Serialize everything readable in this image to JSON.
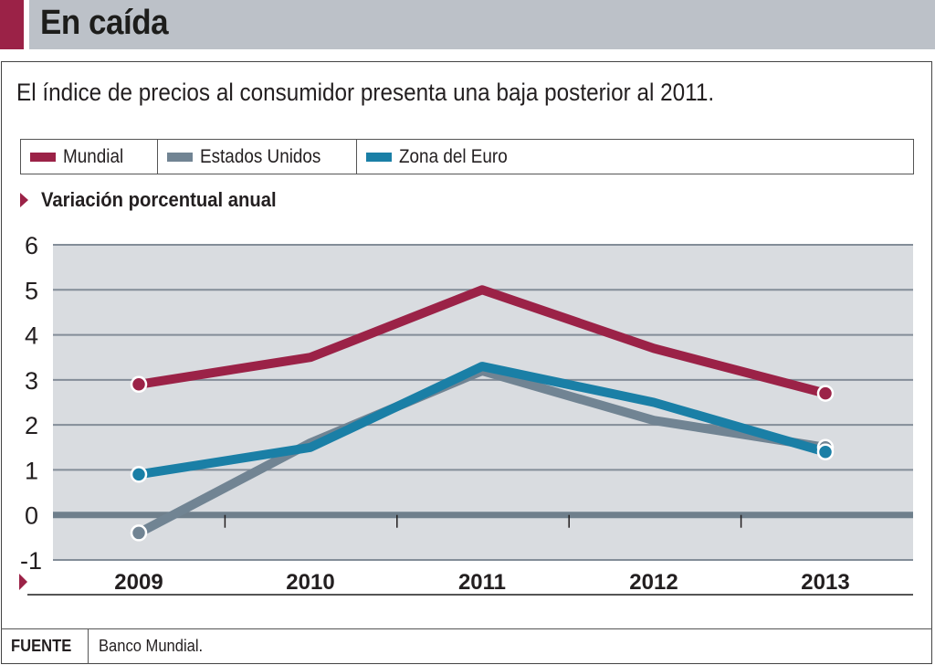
{
  "header": {
    "title": "En caída",
    "subtitle": "El índice de precios al consumidor presenta una baja posterior al 2011."
  },
  "legend": [
    {
      "label": "Mundial",
      "color": "#9b2247"
    },
    {
      "label": "Estados Unidos",
      "color": "#718493"
    },
    {
      "label": "Zona del Euro",
      "color": "#1a7fa6"
    }
  ],
  "unit_label": "Variación porcentual anual",
  "footer": {
    "source_label": "FUENTE",
    "source_text": "Banco Mundial."
  },
  "colors": {
    "accent": "#9b2247",
    "plot_bg": "#d9dce0",
    "grid": "#838d98",
    "zero_line": "#6f7f8c"
  },
  "chart_data": {
    "type": "line",
    "title": "En caída",
    "subtitle": "El índice de precios al consumidor presenta una baja posterior al 2011.",
    "xlabel": "",
    "ylabel": "Variación porcentual anual",
    "categories": [
      "2009",
      "2010",
      "2011",
      "2012",
      "2013"
    ],
    "ylim": [
      -1,
      6
    ],
    "yticks": [
      6,
      5,
      4,
      3,
      2,
      1,
      0,
      -1
    ],
    "grid": true,
    "legend_position": "top",
    "series": [
      {
        "name": "Mundial",
        "color": "#9b2247",
        "values": [
          2.9,
          3.5,
          5.0,
          3.7,
          2.7
        ]
      },
      {
        "name": "Estados Unidos",
        "color": "#718493",
        "values": [
          -0.4,
          1.6,
          3.2,
          2.1,
          1.5
        ]
      },
      {
        "name": "Zona del Euro",
        "color": "#1a7fa6",
        "values": [
          0.9,
          1.5,
          3.3,
          2.5,
          1.4
        ]
      }
    ],
    "source": "Banco Mundial."
  }
}
